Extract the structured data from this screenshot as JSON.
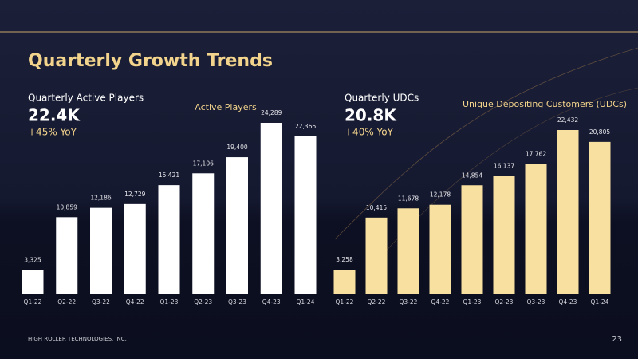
{
  "title": "Quarterly Growth Trends",
  "footer": "HIGH ROLLER TECHNOLOGIES, INC.",
  "page_number": "23",
  "chart_data": [
    {
      "type": "bar",
      "title": "Active Players",
      "kpi": {
        "label": "Quarterly Active Players",
        "value": "22.4K",
        "change": "+45% YoY"
      },
      "categories": [
        "Q1-22",
        "Q2-22",
        "Q3-22",
        "Q4-22",
        "Q1-23",
        "Q2-23",
        "Q3-23",
        "Q4-23",
        "Q1-24"
      ],
      "values": [
        3325,
        10859,
        12186,
        12729,
        15421,
        17106,
        19400,
        24289,
        22366
      ],
      "value_labels": [
        "3,325",
        "10,859",
        "12,186",
        "12,729",
        "15,421",
        "17,106",
        "19,400",
        "24,289",
        "22,366"
      ],
      "color": "#ffffff"
    },
    {
      "type": "bar",
      "title": "Unique Depositing Customers (UDCs)",
      "kpi": {
        "label": "Quarterly UDCs",
        "value": "20.8K",
        "change": "+40% YoY"
      },
      "categories": [
        "Q1-22",
        "Q2-22",
        "Q3-22",
        "Q4-22",
        "Q1-23",
        "Q2-23",
        "Q3-23",
        "Q4-23",
        "Q1-24"
      ],
      "values": [
        3258,
        10415,
        11678,
        12178,
        14854,
        16137,
        17762,
        22432,
        20805
      ],
      "value_labels": [
        "3,258",
        "10,415",
        "11,678",
        "12,178",
        "14,854",
        "16,137",
        "17,762",
        "22,432",
        "20,805"
      ],
      "color": "#f8e0a0"
    }
  ]
}
